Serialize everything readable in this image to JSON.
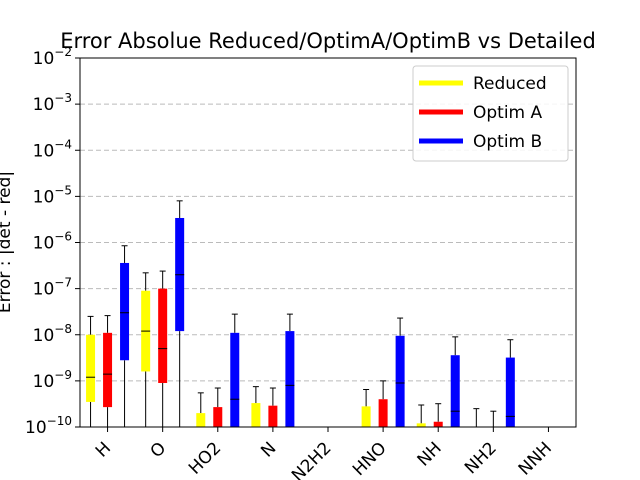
{
  "chart_data": {
    "type": "box",
    "title": "Error Absolue Reduced/OptimA/OptimB vs Detailed",
    "ylabel": "Error : |det - red|",
    "xlabel": "",
    "yscale": "log",
    "ylim": [
      1e-10,
      0.01
    ],
    "grid": "y-dashed",
    "legend_position": "top-right",
    "categories": [
      "H",
      "O",
      "HO2",
      "N",
      "N2H2",
      "HNO",
      "NH",
      "NH2",
      "NNH"
    ],
    "series": [
      {
        "name": "Reduced",
        "color": "#ffff00",
        "boxes": [
          {
            "whislo": 1e-10,
            "q1": 3.5e-10,
            "med": 1.2e-09,
            "q3": 1e-08,
            "whishi": 2.5e-08
          },
          {
            "whislo": 1e-10,
            "q1": 1.6e-09,
            "med": 1.2e-08,
            "q3": 9e-08,
            "whishi": 2.2e-07
          },
          {
            "whislo": 1e-10,
            "q1": 1e-10,
            "med": 1e-10,
            "q3": 2e-10,
            "whishi": 5.5e-10
          },
          {
            "whislo": 1e-10,
            "q1": 1e-10,
            "med": 1e-10,
            "q3": 3.3e-10,
            "whishi": 7.5e-10
          },
          null,
          {
            "whislo": 1e-10,
            "q1": 1e-10,
            "med": 1e-10,
            "q3": 2.8e-10,
            "whishi": 6.5e-10
          },
          {
            "whislo": 1e-10,
            "q1": 1e-10,
            "med": 1e-10,
            "q3": 1.2e-10,
            "whishi": 3e-10
          },
          {
            "whislo": 1e-10,
            "q1": 1e-10,
            "med": 1e-10,
            "q3": 1e-10,
            "whishi": 2.5e-10
          },
          null
        ]
      },
      {
        "name": "Optim A",
        "color": "#ff0000",
        "boxes": [
          {
            "whislo": 1e-10,
            "q1": 2.7e-10,
            "med": 1.4e-09,
            "q3": 1.1e-08,
            "whishi": 2.6e-08
          },
          {
            "whislo": 1e-10,
            "q1": 9e-10,
            "med": 5e-09,
            "q3": 1e-07,
            "whishi": 2.4e-07
          },
          {
            "whislo": 1e-10,
            "q1": 1e-10,
            "med": 1e-10,
            "q3": 2.7e-10,
            "whishi": 7e-10
          },
          {
            "whislo": 1e-10,
            "q1": 1e-10,
            "med": 1e-10,
            "q3": 2.9e-10,
            "whishi": 7e-10
          },
          null,
          {
            "whislo": 1e-10,
            "q1": 1e-10,
            "med": 1e-10,
            "q3": 4e-10,
            "whishi": 1e-09
          },
          {
            "whislo": 1e-10,
            "q1": 1e-10,
            "med": 1e-10,
            "q3": 1.3e-10,
            "whishi": 3.2e-10
          },
          {
            "whislo": 1e-10,
            "q1": 1e-10,
            "med": 1e-10,
            "q3": 1e-10,
            "whishi": 2.2e-10
          },
          null
        ]
      },
      {
        "name": "Optim B",
        "color": "#0000ff",
        "boxes": [
          {
            "whislo": 1e-10,
            "q1": 2.8e-09,
            "med": 3e-08,
            "q3": 3.6e-07,
            "whishi": 8.5e-07
          },
          {
            "whislo": 1e-10,
            "q1": 1.2e-08,
            "med": 2e-07,
            "q3": 3.4e-06,
            "whishi": 8e-06
          },
          {
            "whislo": 1e-10,
            "q1": 1e-10,
            "med": 4e-10,
            "q3": 1.1e-08,
            "whishi": 2.8e-08
          },
          {
            "whislo": 1e-10,
            "q1": 1e-10,
            "med": 8e-10,
            "q3": 1.2e-08,
            "whishi": 2.8e-08
          },
          null,
          {
            "whislo": 1e-10,
            "q1": 1e-10,
            "med": 9e-10,
            "q3": 9.5e-09,
            "whishi": 2.3e-08
          },
          {
            "whislo": 1e-10,
            "q1": 1e-10,
            "med": 2.2e-10,
            "q3": 3.6e-09,
            "whishi": 9e-09
          },
          {
            "whislo": 1e-10,
            "q1": 1e-10,
            "med": 1.7e-10,
            "q3": 3.2e-09,
            "whishi": 7.8e-09
          },
          null
        ]
      }
    ]
  }
}
